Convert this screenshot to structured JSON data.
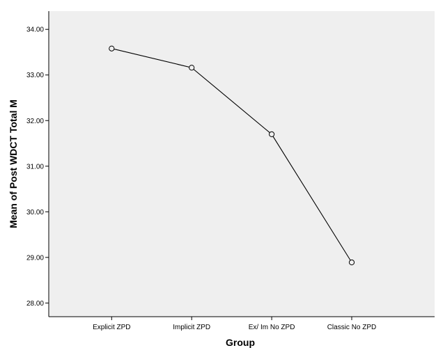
{
  "chart_data": {
    "type": "line",
    "xlabel": "Group",
    "ylabel": "Mean of Post WDCT Total M",
    "categories": [
      "Explicit ZPD",
      "Implicit ZPD",
      "Ex/ Im No ZPD",
      "Classic No ZPD"
    ],
    "series": [
      {
        "values": [
          33.58,
          33.16,
          31.7,
          28.89
        ]
      }
    ],
    "ylim": [
      27.7,
      34.4
    ],
    "yticks": [
      28.0,
      29.0,
      30.0,
      31.0,
      32.0,
      33.0,
      34.0
    ],
    "ytick_labels": [
      "28.00",
      "29.00",
      "30.00",
      "31.00",
      "32.00",
      "33.00",
      "34.00"
    ],
    "grid": false,
    "legend": false,
    "colors": {
      "plot_background": "#efefef",
      "line": "#000000",
      "marker_fill": "#efefef",
      "frame": "#000000"
    },
    "marker": "circle-open"
  }
}
